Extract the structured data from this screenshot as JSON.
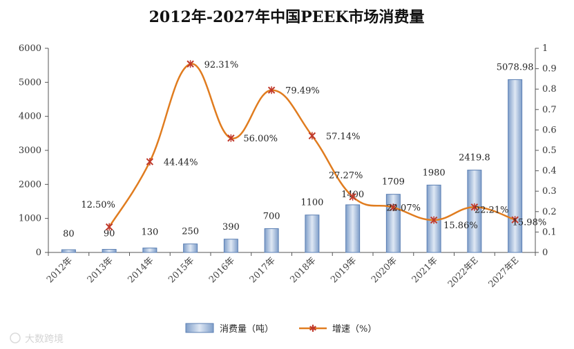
{
  "chart_data": {
    "type": "bar+line",
    "title": "2012年-2027年中国PEEK市场消费量",
    "categories": [
      "2012年",
      "2013年",
      "2014年",
      "2015年",
      "2016年",
      "2017年",
      "2018年",
      "2019年",
      "2020年",
      "2021年",
      "2022年E",
      "2027年E"
    ],
    "series": [
      {
        "name": "消费量（吨）",
        "type": "bar",
        "axis": "left",
        "values": [
          80,
          90,
          130,
          250,
          390,
          700,
          1100,
          1400,
          1709,
          1980,
          2419.8,
          5078.98
        ],
        "labels": [
          "80",
          "90",
          "130",
          "250",
          "390",
          "700",
          "1100",
          "1400",
          "1709",
          "1980",
          "2419.8",
          "5078.98"
        ]
      },
      {
        "name": "增速（%）",
        "type": "line",
        "axis": "right",
        "values": [
          null,
          0.125,
          0.4444,
          0.9231,
          0.56,
          0.7949,
          0.5714,
          0.2727,
          0.2207,
          0.1586,
          0.2221,
          0.1598
        ],
        "labels": [
          "",
          "12.50%",
          "44.44%",
          "92.31%",
          "56.00%",
          "79.49%",
          "57.14%",
          "27.27%",
          "22.07%",
          "15.86%",
          "22.21%",
          "15.98%"
        ]
      }
    ],
    "y_left": {
      "range": [
        0,
        6000
      ],
      "ticks": [
        "0",
        "1000",
        "2000",
        "3000",
        "4000",
        "5000",
        "6000"
      ]
    },
    "y_right": {
      "range": [
        0,
        1
      ],
      "ticks": [
        "0",
        "0.1",
        "0.2",
        "0.3",
        "0.4",
        "0.5",
        "0.6",
        "0.7",
        "0.8",
        "0.9",
        "1"
      ]
    },
    "legend": {
      "position": "bottom",
      "items": [
        "消费量（吨）",
        "增速（%）"
      ]
    },
    "colors": {
      "bar_fill": "#a9c1e0",
      "bar_stroke": "#5b7fb3",
      "line": "#e07c1f",
      "marker": "#c0392b"
    }
  },
  "watermark": "大数跨境"
}
